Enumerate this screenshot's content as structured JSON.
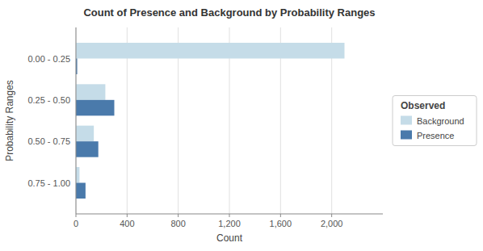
{
  "chart_data": {
    "type": "bar",
    "orientation": "horizontal",
    "title": "Count of Presence and Background by Probability Ranges",
    "x_label": "Count",
    "y_label": "Probability Ranges",
    "categories": [
      "0.75 - 1.00",
      "0.50 - 0.75",
      "0.25 - 0.50",
      "0.00 - 0.25"
    ],
    "series": [
      {
        "name": "Background",
        "color": "#c5dce8",
        "values": [
          28,
          140,
          230,
          2100
        ]
      },
      {
        "name": "Presence",
        "color": "#4a7aab",
        "values": [
          75,
          175,
          300,
          10
        ]
      }
    ],
    "xlim": [
      0,
      2400
    ],
    "xticks": [
      0,
      400,
      800,
      {
        "value": 1200,
        "label": "1,200"
      },
      {
        "value": 1600,
        "label": "1,600"
      },
      {
        "value": 2000,
        "label": "2,000"
      }
    ],
    "grid": true,
    "legend": "right",
    "legend_title": "Observed"
  }
}
